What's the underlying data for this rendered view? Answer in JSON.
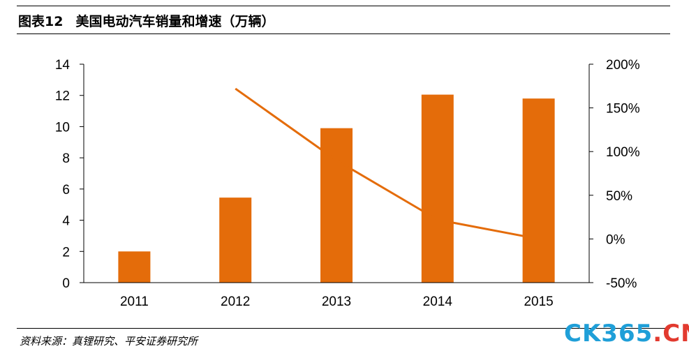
{
  "header": {
    "figure_no": "图表12",
    "title": "美国电动汽车销量和增速（万辆）"
  },
  "footer": {
    "source": "资料来源：真锂研究、平安证券研究所"
  },
  "watermark": {
    "part1": "CK365",
    "dot": ".",
    "part2": "CN"
  },
  "colors": {
    "bar": "#e46c0a",
    "line": "#e46c0a",
    "axis": "#000000"
  },
  "chart_data": {
    "type": "bar",
    "categories": [
      "2011",
      "2012",
      "2013",
      "2014",
      "2015"
    ],
    "series": [
      {
        "type": "bar",
        "axis": "left",
        "values": [
          2.0,
          5.45,
          9.9,
          12.05,
          11.8
        ]
      },
      {
        "type": "line",
        "axis": "right",
        "values": [
          null,
          172,
          90,
          22,
          0
        ]
      }
    ],
    "title": "美国电动汽车销量和增速（万辆）",
    "xlabel": "",
    "ylabel": "",
    "y2label": "",
    "ylim": [
      0,
      14
    ],
    "y2lim": [
      -50,
      200
    ],
    "yticks": [
      "0",
      "2",
      "4",
      "6",
      "8",
      "10",
      "12",
      "14"
    ],
    "y2ticks": [
      "-50%",
      "0%",
      "50%",
      "100%",
      "150%",
      "200%"
    ],
    "grid": false,
    "legend": "none"
  }
}
